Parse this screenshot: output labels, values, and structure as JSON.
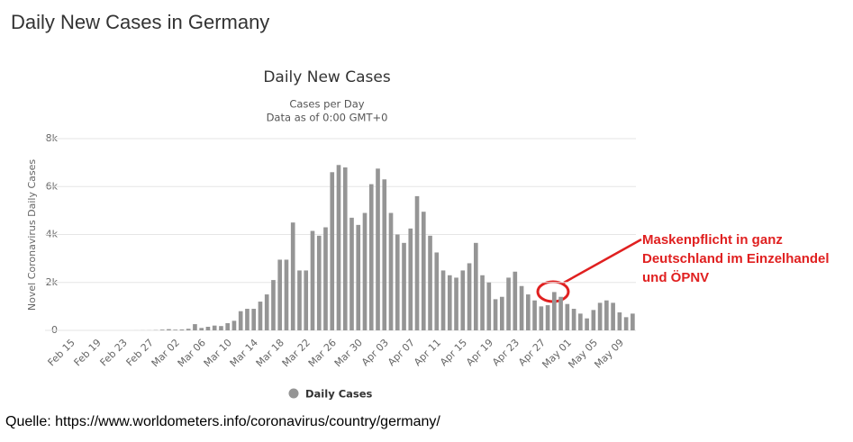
{
  "header": {
    "title": "Daily New Cases in Germany"
  },
  "source": "Quelle: https://www.worldometers.info/coronavirus/country/germany/",
  "chart_data": {
    "type": "bar",
    "title": "Daily New Cases",
    "subtitle": [
      "Cases per Day",
      "Data as of 0:00 GMT+0"
    ],
    "y_label": "Novel Coronavirus Daily Cases",
    "categories": [
      "Feb 15",
      null,
      null,
      null,
      "Feb 19",
      null,
      null,
      null,
      "Feb 23",
      null,
      null,
      null,
      "Feb 27",
      null,
      null,
      null,
      "Mar 02",
      null,
      null,
      null,
      "Mar 06",
      null,
      null,
      null,
      "Mar 10",
      null,
      null,
      null,
      "Mar 14",
      null,
      null,
      null,
      "Mar 18",
      null,
      null,
      null,
      "Mar 22",
      null,
      null,
      null,
      "Mar 26",
      null,
      null,
      null,
      "Mar 30",
      null,
      null,
      null,
      "Apr 03",
      null,
      null,
      null,
      "Apr 07",
      null,
      null,
      null,
      "Apr 11",
      null,
      null,
      null,
      "Apr 15",
      null,
      null,
      null,
      "Apr 19",
      null,
      null,
      null,
      "Apr 23",
      null,
      null,
      null,
      "Apr 27",
      null,
      null,
      null,
      "May 01",
      null,
      null,
      null,
      "May 05",
      null,
      null,
      null,
      "May 09",
      null,
      null
    ],
    "series": [
      {
        "name": "Daily Cases",
        "color": "#959595",
        "values": [
          0,
          0,
          0,
          0,
          0,
          0,
          0,
          0,
          0,
          0,
          2,
          4,
          5,
          12,
          31,
          51,
          29,
          37,
          66,
          260,
          100,
          150,
          200,
          180,
          300,
          400,
          800,
          900,
          900,
          1200,
          1500,
          2100,
          2950,
          2950,
          4500,
          2500,
          2500,
          4150,
          3950,
          4300,
          6600,
          6900,
          6800,
          4700,
          4400,
          4900,
          6100,
          6750,
          6300,
          4900,
          4000,
          3650,
          4250,
          5600,
          4950,
          3950,
          3250,
          2500,
          2300,
          2200,
          2500,
          2800,
          3650,
          2300,
          2000,
          1300,
          1400,
          2200,
          2450,
          1850,
          1500,
          1250,
          1000,
          1050,
          1600,
          1400,
          1100,
          900,
          700,
          500,
          850,
          1150,
          1250,
          1150,
          750,
          550,
          700
        ]
      }
    ],
    "ylim": [
      0,
      8000
    ],
    "yticks": [
      0,
      {
        "value": 2000,
        "label": "2k"
      },
      {
        "value": 4000,
        "label": "4k"
      },
      {
        "value": 6000,
        "label": "6k"
      },
      {
        "value": 8000,
        "label": "8k"
      }
    ],
    "grid": true,
    "annotation": [
      "Maskenpflicht in ganz",
      "Deutschland im Einzelhandel",
      "und ÖPNV"
    ]
  }
}
